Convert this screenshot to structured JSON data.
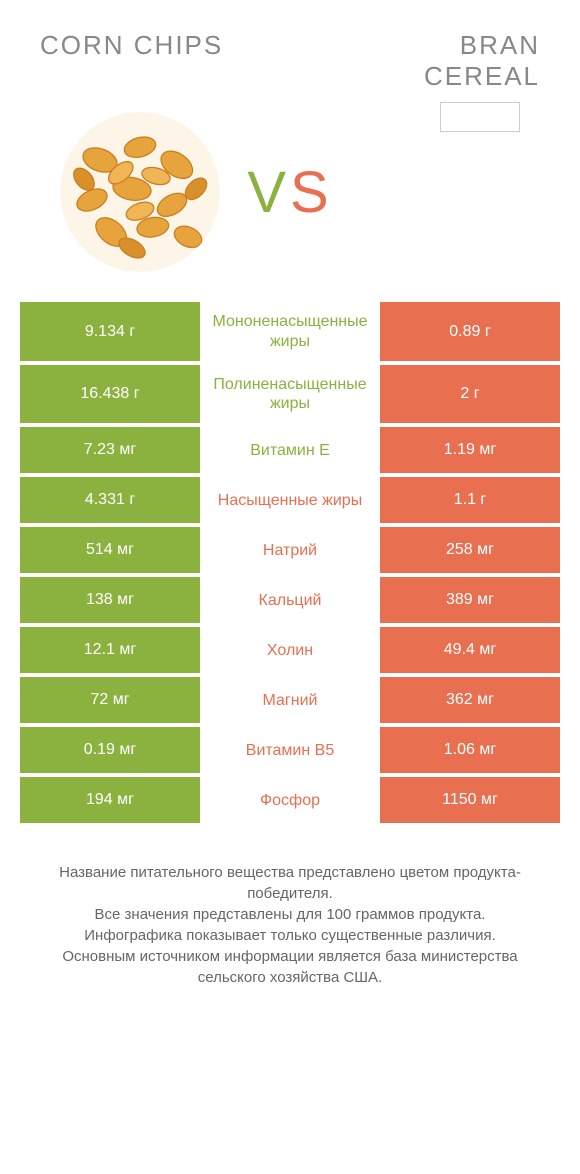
{
  "colors": {
    "green": "#8bb23f",
    "orange": "#e96f51",
    "mid_green_text": "#8bb23f",
    "mid_orange_text": "#e96f51",
    "title_gray": "#888888",
    "body_bg": "#ffffff"
  },
  "header": {
    "left_title": "CORN CHIPS",
    "right_title_line1": "BRAN",
    "right_title_line2": "CEREAL"
  },
  "vs": {
    "v": "V",
    "s": "S"
  },
  "rows": [
    {
      "left": "9.134 г",
      "mid": "Мононенасыщенные жиры",
      "right": "0.89 г",
      "winner": "left"
    },
    {
      "left": "16.438 г",
      "mid": "Полиненасыщенные жиры",
      "right": "2 г",
      "winner": "left"
    },
    {
      "left": "7.23 мг",
      "mid": "Витамин E",
      "right": "1.19 мг",
      "winner": "left"
    },
    {
      "left": "4.331 г",
      "mid": "Насыщенные жиры",
      "right": "1.1 г",
      "winner": "right"
    },
    {
      "left": "514 мг",
      "mid": "Натрий",
      "right": "258 мг",
      "winner": "right"
    },
    {
      "left": "138 мг",
      "mid": "Кальций",
      "right": "389 мг",
      "winner": "right"
    },
    {
      "left": "12.1 мг",
      "mid": "Холин",
      "right": "49.4 мг",
      "winner": "right"
    },
    {
      "left": "72 мг",
      "mid": "Магний",
      "right": "362 мг",
      "winner": "right"
    },
    {
      "left": "0.19 мг",
      "mid": "Витамин B5",
      "right": "1.06 мг",
      "winner": "right"
    },
    {
      "left": "194 мг",
      "mid": "Фосфор",
      "right": "1150 мг",
      "winner": "right"
    }
  ],
  "footer": {
    "line1": "Название питательного вещества представлено цветом продукта-победителя.",
    "line2": "Все значения представлены для 100 граммов продукта.",
    "line3": "Инфографика показывает только существенные различия.",
    "line4": "Основным источником информации является база министерства сельского хозяйства США."
  }
}
